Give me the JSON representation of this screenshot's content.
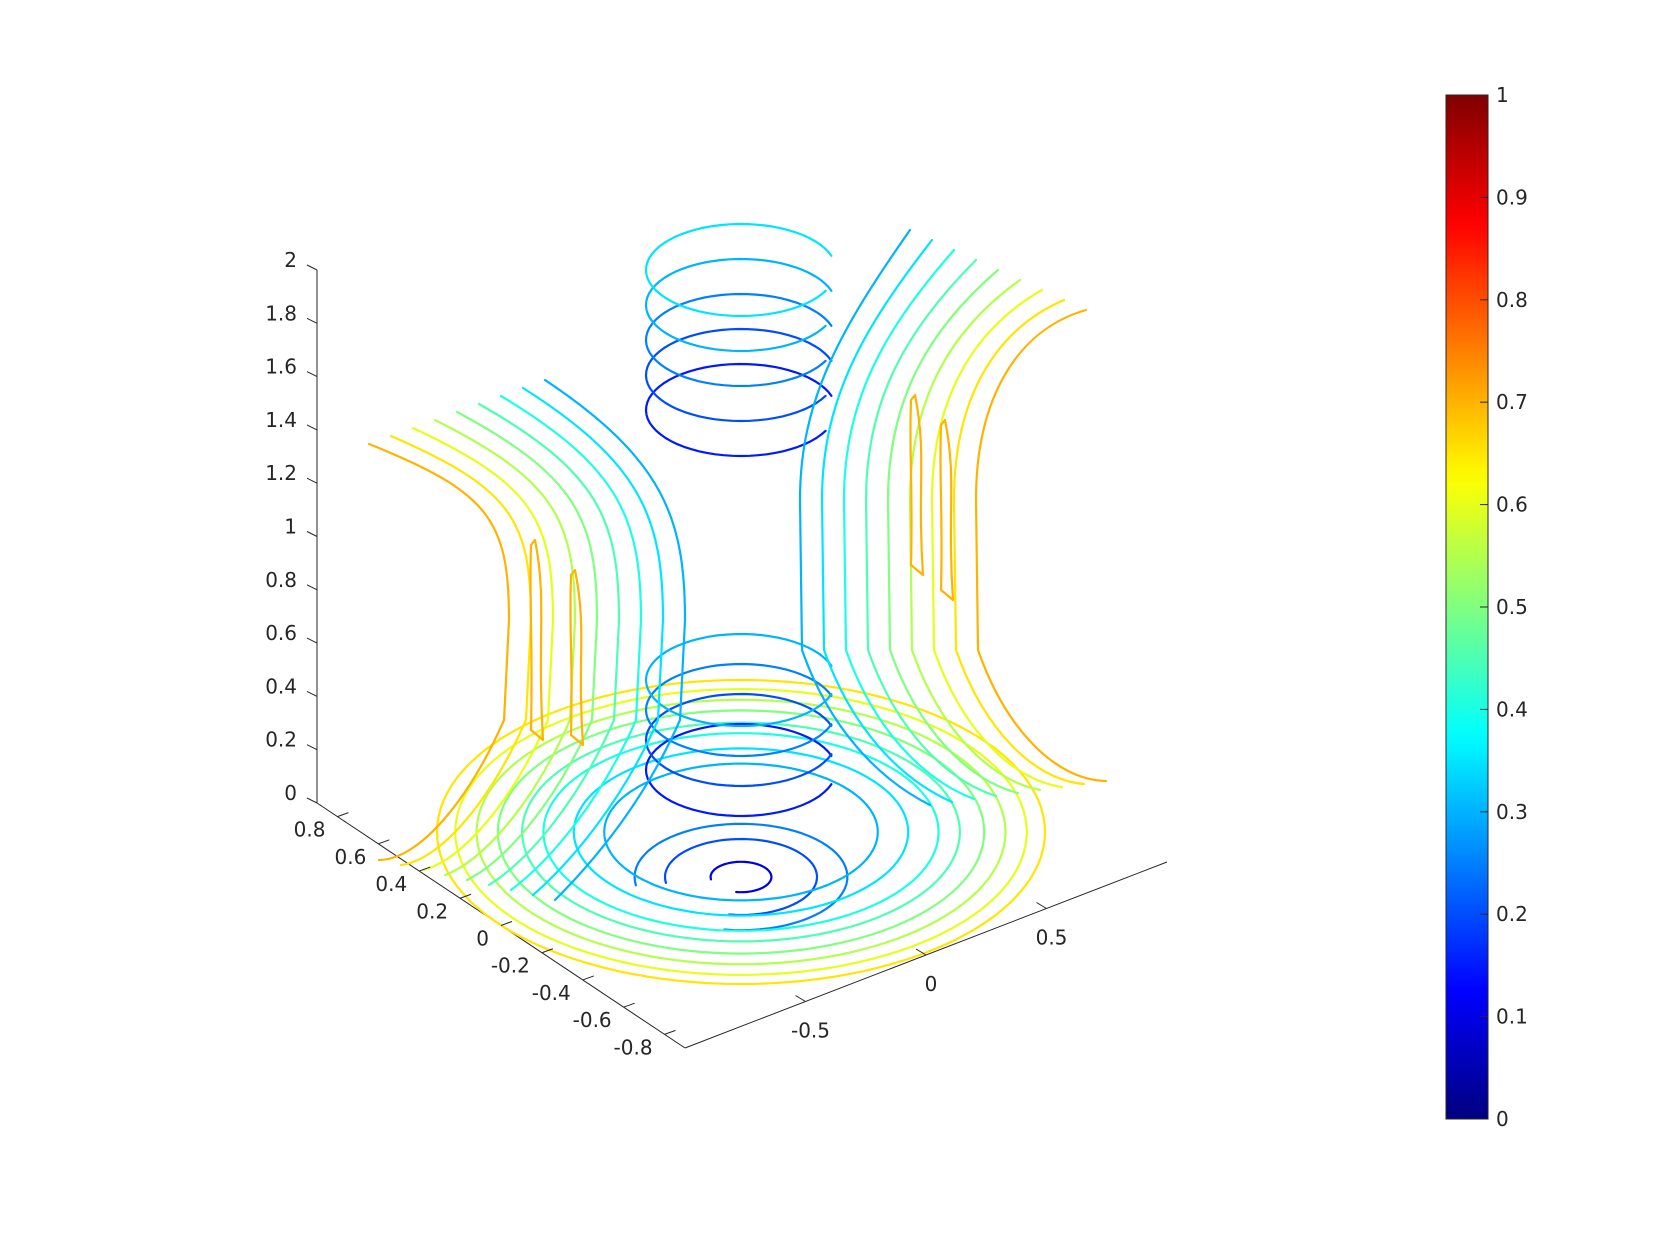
{
  "chart_data": {
    "type": "contour3d",
    "title": "",
    "xlabel": "",
    "ylabel": "",
    "zlabel": "",
    "x_axis": {
      "range": [
        -1,
        1
      ],
      "ticks": [
        -0.5,
        0,
        0.5
      ],
      "tick_labels": [
        "-0.5",
        "0",
        "0.5"
      ]
    },
    "y_axis": {
      "range": [
        -0.9,
        0.9
      ],
      "ticks": [
        -0.8,
        -0.6,
        -0.4,
        -0.2,
        0,
        0.2,
        0.4,
        0.6,
        0.8
      ],
      "tick_labels": [
        "-0.8",
        "-0.6",
        "-0.4",
        "-0.2",
        "0",
        "0.2",
        "0.4",
        "0.6",
        "0.8"
      ]
    },
    "z_axis": {
      "range": [
        0,
        2
      ],
      "ticks": [
        0,
        0.2,
        0.4,
        0.6,
        0.8,
        1,
        1.2,
        1.4,
        1.6,
        1.8,
        2
      ],
      "tick_labels": [
        "0",
        "0.2",
        "0.4",
        "0.6",
        "0.8",
        "1",
        "1.2",
        "1.4",
        "1.6",
        "1.8",
        "2"
      ]
    },
    "colorbar": {
      "colormap": "jet",
      "range": [
        0,
        1
      ],
      "ticks": [
        0,
        0.1,
        0.2,
        0.3,
        0.4,
        0.5,
        0.6,
        0.7,
        0.8,
        0.9,
        1
      ],
      "tick_labels": [
        "0",
        "0.1",
        "0.2",
        "0.3",
        "0.4",
        "0.5",
        "0.6",
        "0.7",
        "0.8",
        "0.9",
        "1"
      ],
      "placement": "right"
    },
    "floor_rings": {
      "z": 0,
      "levels": [
        0.1,
        0.2,
        0.25,
        0.3,
        0.35,
        0.4,
        0.45,
        0.5,
        0.55,
        0.6,
        0.65
      ],
      "radii": [
        0.1,
        0.25,
        0.35,
        0.45,
        0.55,
        0.65,
        0.72,
        0.8,
        0.87,
        0.94,
        1.0
      ]
    },
    "cylinder_rings": {
      "levels": [
        0.15,
        0.2,
        0.25,
        0.3,
        0.35
      ],
      "z": [
        1.5,
        1.6,
        1.7,
        1.8,
        1.9
      ],
      "radius": 0.35
    },
    "vertical_curves": {
      "levels": [
        0.3,
        0.35,
        0.4,
        0.45,
        0.5,
        0.55,
        0.6,
        0.65,
        0.7
      ],
      "z_range": [
        0.3,
        1.9
      ]
    }
  }
}
